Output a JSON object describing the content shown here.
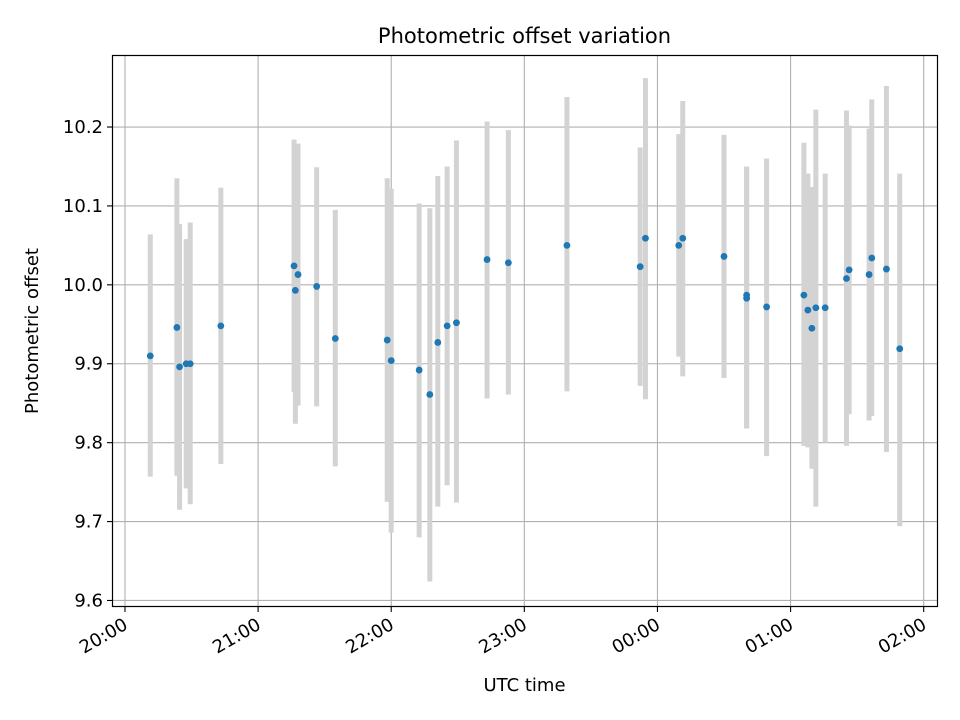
{
  "chart_data": {
    "type": "scatter",
    "title": "Photometric offset variation",
    "xlabel": "UTC time",
    "ylabel": "Photometric offset",
    "x_tick_labels": [
      "20:00",
      "21:00",
      "22:00",
      "23:00",
      "00:00",
      "01:00",
      "02:00"
    ],
    "x_tick_hours": [
      0,
      1,
      2,
      3,
      4,
      5,
      6
    ],
    "y_ticks": [
      9.6,
      9.7,
      9.8,
      9.9,
      10.0,
      10.1,
      10.2
    ],
    "y_tick_labels": [
      "9.6",
      "9.7",
      "9.8",
      "9.9",
      "10.0",
      "10.1",
      "10.2"
    ],
    "xlim_hours_after_20": [
      -0.09,
      6.1
    ],
    "ylim": [
      9.593,
      10.29
    ],
    "grid": true,
    "point_color": "#1f77b4",
    "errorbar_color": "#d3d3d3",
    "x_unit_note": "hours after 20:00 UTC",
    "points": [
      {
        "x": 0.19,
        "y": 9.91,
        "lo": 9.757,
        "hi": 10.064
      },
      {
        "x": 0.39,
        "y": 9.946,
        "lo": 9.758,
        "hi": 10.135
      },
      {
        "x": 0.41,
        "y": 9.896,
        "lo": 9.715,
        "hi": 10.077
      },
      {
        "x": 0.46,
        "y": 9.9,
        "lo": 9.742,
        "hi": 10.058
      },
      {
        "x": 0.49,
        "y": 9.9,
        "lo": 9.722,
        "hi": 10.079
      },
      {
        "x": 0.72,
        "y": 9.948,
        "lo": 9.773,
        "hi": 10.123
      },
      {
        "x": 1.27,
        "y": 10.024,
        "lo": 9.864,
        "hi": 10.184
      },
      {
        "x": 1.28,
        "y": 9.993,
        "lo": 9.824,
        "hi": 10.162
      },
      {
        "x": 1.3,
        "y": 10.013,
        "lo": 9.847,
        "hi": 10.179
      },
      {
        "x": 1.44,
        "y": 9.998,
        "lo": 9.846,
        "hi": 10.149
      },
      {
        "x": 1.58,
        "y": 9.932,
        "lo": 9.77,
        "hi": 10.095
      },
      {
        "x": 1.97,
        "y": 9.93,
        "lo": 9.725,
        "hi": 10.135
      },
      {
        "x": 2.0,
        "y": 9.904,
        "lo": 9.686,
        "hi": 10.122
      },
      {
        "x": 2.21,
        "y": 9.892,
        "lo": 9.68,
        "hi": 10.103
      },
      {
        "x": 2.29,
        "y": 9.861,
        "lo": 9.624,
        "hi": 10.097
      },
      {
        "x": 2.35,
        "y": 9.927,
        "lo": 9.719,
        "hi": 10.138
      },
      {
        "x": 2.42,
        "y": 9.948,
        "lo": 9.746,
        "hi": 10.15
      },
      {
        "x": 2.49,
        "y": 9.952,
        "lo": 9.724,
        "hi": 10.183
      },
      {
        "x": 2.72,
        "y": 10.032,
        "lo": 9.856,
        "hi": 10.207
      },
      {
        "x": 2.88,
        "y": 10.028,
        "lo": 9.861,
        "hi": 10.196
      },
      {
        "x": 3.32,
        "y": 10.05,
        "lo": 9.865,
        "hi": 10.238
      },
      {
        "x": 3.87,
        "y": 10.023,
        "lo": 9.872,
        "hi": 10.174
      },
      {
        "x": 3.91,
        "y": 10.059,
        "lo": 9.855,
        "hi": 10.262
      },
      {
        "x": 4.16,
        "y": 10.05,
        "lo": 9.909,
        "hi": 10.191
      },
      {
        "x": 4.19,
        "y": 10.059,
        "lo": 9.884,
        "hi": 10.233
      },
      {
        "x": 4.5,
        "y": 10.036,
        "lo": 9.882,
        "hi": 10.19
      },
      {
        "x": 4.67,
        "y": 9.983,
        "lo": 9.818,
        "hi": 10.15
      },
      {
        "x": 4.67,
        "y": 9.987,
        "lo": 9.818,
        "hi": 10.15
      },
      {
        "x": 4.82,
        "y": 9.972,
        "lo": 9.783,
        "hi": 10.16
      },
      {
        "x": 5.1,
        "y": 9.987,
        "lo": 9.796,
        "hi": 10.18
      },
      {
        "x": 5.13,
        "y": 9.968,
        "lo": 9.794,
        "hi": 10.141
      },
      {
        "x": 5.16,
        "y": 9.945,
        "lo": 9.767,
        "hi": 10.124
      },
      {
        "x": 5.19,
        "y": 9.971,
        "lo": 9.719,
        "hi": 10.222
      },
      {
        "x": 5.26,
        "y": 9.971,
        "lo": 9.8,
        "hi": 10.141
      },
      {
        "x": 5.42,
        "y": 10.008,
        "lo": 9.796,
        "hi": 10.221
      },
      {
        "x": 5.44,
        "y": 10.019,
        "lo": 9.836,
        "hi": 10.202
      },
      {
        "x": 5.59,
        "y": 10.013,
        "lo": 9.828,
        "hi": 10.198
      },
      {
        "x": 5.61,
        "y": 10.034,
        "lo": 9.834,
        "hi": 10.235
      },
      {
        "x": 5.72,
        "y": 10.02,
        "lo": 9.788,
        "hi": 10.252
      },
      {
        "x": 5.82,
        "y": 9.919,
        "lo": 9.694,
        "hi": 10.141
      }
    ]
  }
}
